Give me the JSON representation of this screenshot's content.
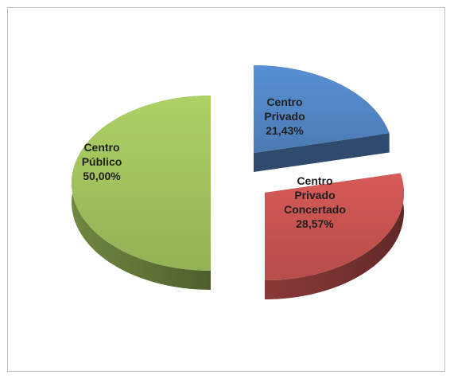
{
  "chart_data": {
    "type": "pie",
    "style": "3d-exploded",
    "title": "",
    "slices": [
      {
        "label_lines": [
          "Centro",
          "Privado"
        ],
        "value_label": "21,43%",
        "value": 21.43,
        "color": "#4f81bd"
      },
      {
        "label_lines": [
          "Centro",
          "Privado",
          "Concertado"
        ],
        "value_label": "28,57%",
        "value": 28.57,
        "color": "#c0504d"
      },
      {
        "label_lines": [
          "Centro",
          "Público"
        ],
        "value_label": "50,00%",
        "value": 50.0,
        "color": "#9bbb59"
      }
    ]
  }
}
